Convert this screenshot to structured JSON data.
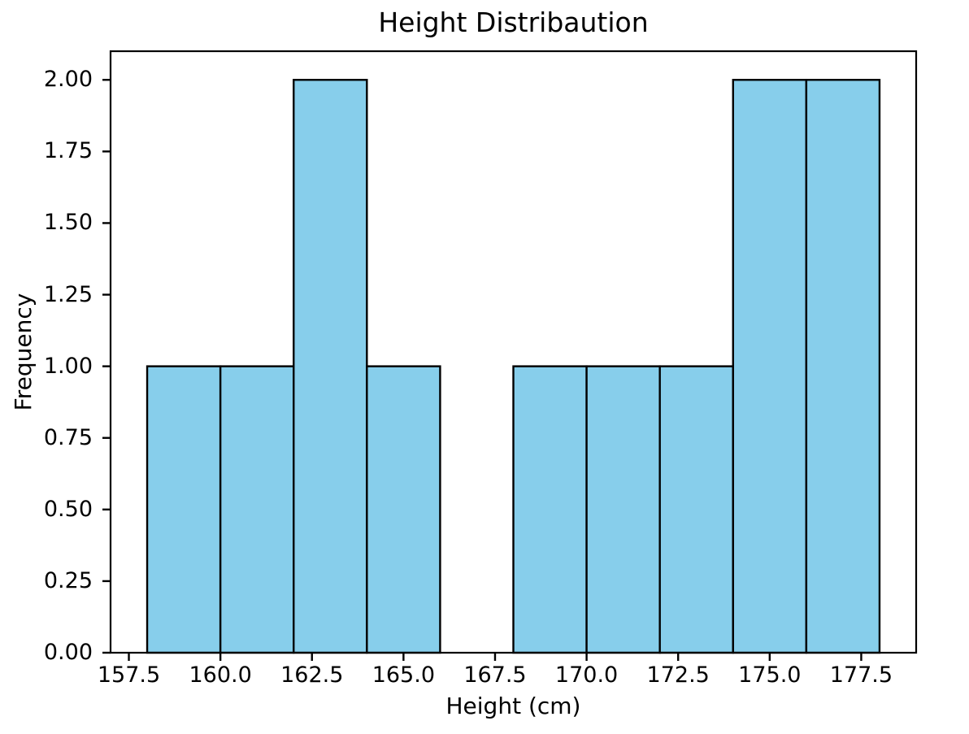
{
  "chart_data": {
    "type": "histogram",
    "title": "Height Distribaution",
    "xlabel": "Height (cm)",
    "ylabel": "Frequency",
    "bin_edges": [
      158,
      160,
      162,
      164,
      166,
      168,
      170,
      172,
      174,
      176,
      178
    ],
    "counts": [
      1,
      1,
      2,
      1,
      0,
      1,
      1,
      1,
      2,
      2
    ],
    "xlim": [
      157,
      179
    ],
    "ylim": [
      0,
      2.1
    ],
    "xtick_values": [
      157.5,
      160.0,
      162.5,
      165.0,
      167.5,
      170.0,
      172.5,
      175.0,
      177.5
    ],
    "xtick_labels": [
      "157.5",
      "160.0",
      "162.5",
      "165.0",
      "167.5",
      "170.0",
      "172.5",
      "175.0",
      "177.5"
    ],
    "ytick_values": [
      0.0,
      0.25,
      0.5,
      0.75,
      1.0,
      1.25,
      1.5,
      1.75,
      2.0
    ],
    "ytick_labels": [
      "0.00",
      "0.25",
      "0.50",
      "0.75",
      "1.00",
      "1.25",
      "1.50",
      "1.75",
      "2.00"
    ],
    "bar_fill_color": "#87CEEB",
    "bar_edge_color": "#000000",
    "axis_color": "#000000",
    "background_color": "#FFFFFF",
    "grid": false,
    "legend": "none"
  }
}
